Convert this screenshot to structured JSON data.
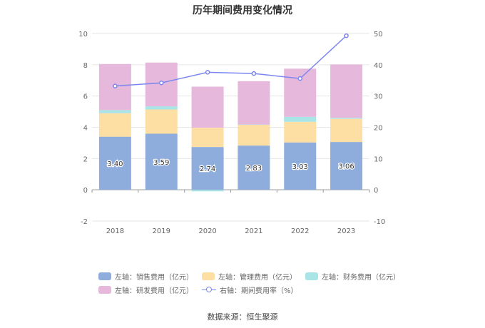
{
  "chart_data": {
    "type": "bar",
    "title": "历年期间费用变化情况",
    "categories": [
      "2018",
      "2019",
      "2020",
      "2021",
      "2022",
      "2023"
    ],
    "series": [
      {
        "name": "左轴：销售费用（亿元）",
        "values": [
          3.4,
          3.59,
          2.74,
          2.83,
          3.03,
          3.06
        ],
        "color": "#8eaddd",
        "axis": "left",
        "stack": true
      },
      {
        "name": "左轴：管理费用（亿元）",
        "values": [
          1.5,
          1.55,
          1.23,
          1.33,
          1.32,
          1.48
        ],
        "color": "#fddea3",
        "axis": "left",
        "stack": true
      },
      {
        "name": "左轴：财务费用（亿元）",
        "values": [
          0.2,
          0.2,
          -0.1,
          0.02,
          0.32,
          0.06
        ],
        "color": "#a9e4e6",
        "axis": "left",
        "stack": true
      },
      {
        "name": "左轴：研发费用（亿元）",
        "values": [
          2.95,
          2.8,
          2.63,
          2.77,
          3.08,
          3.42
        ],
        "color": "#e6b8dc",
        "axis": "left",
        "stack": true
      },
      {
        "name": "右轴：期间费用率（%）",
        "type": "line",
        "values": [
          33.2,
          34.2,
          37.6,
          37.2,
          35.6,
          49.3
        ],
        "color": "#7b87ee",
        "axis": "right"
      }
    ],
    "data_labels": [
      "3.40",
      "3.59",
      "2.74",
      "2.83",
      "3.03",
      "3.06"
    ],
    "y_left": {
      "min": -2,
      "max": 10,
      "ticks": [
        "-2",
        "0",
        "2",
        "4",
        "6",
        "8",
        "10"
      ]
    },
    "y_right": {
      "min": -10,
      "max": 50,
      "ticks": [
        "-10",
        "0",
        "10",
        "20",
        "30",
        "40",
        "50"
      ]
    },
    "legend_position": "bottom",
    "grid": true
  },
  "source_text": "数据来源：恒生聚源"
}
